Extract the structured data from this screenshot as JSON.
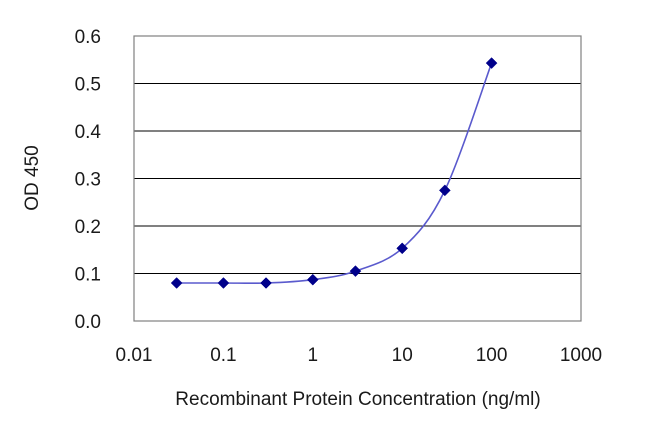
{
  "chart_data": {
    "type": "line",
    "title": "",
    "xlabel": "Recombinant Protein Concentration (ng/ml)",
    "ylabel": "OD 450",
    "x_scale": "log",
    "xlim": [
      0.01,
      1000
    ],
    "ylim": [
      0.0,
      0.6
    ],
    "x_ticks": [
      0.01,
      0.1,
      1,
      10,
      100,
      1000
    ],
    "x_tick_labels": [
      "0.01",
      "0.1",
      "1",
      "10",
      "100",
      "1000"
    ],
    "y_ticks": [
      0.0,
      0.1,
      0.2,
      0.3,
      0.4,
      0.5,
      0.6
    ],
    "y_tick_labels": [
      "0.0",
      "0.1",
      "0.2",
      "0.3",
      "0.4",
      "0.5",
      "0.6"
    ],
    "grid": "horizontal",
    "legend": "none",
    "series": [
      {
        "color": "#00008b",
        "line_color": "#5a5acd",
        "marker": "diamond",
        "x": [
          0.03,
          0.1,
          0.3,
          1,
          3,
          10,
          30,
          100
        ],
        "y": [
          0.08,
          0.08,
          0.08,
          0.087,
          0.105,
          0.153,
          0.275,
          0.543
        ]
      }
    ]
  }
}
